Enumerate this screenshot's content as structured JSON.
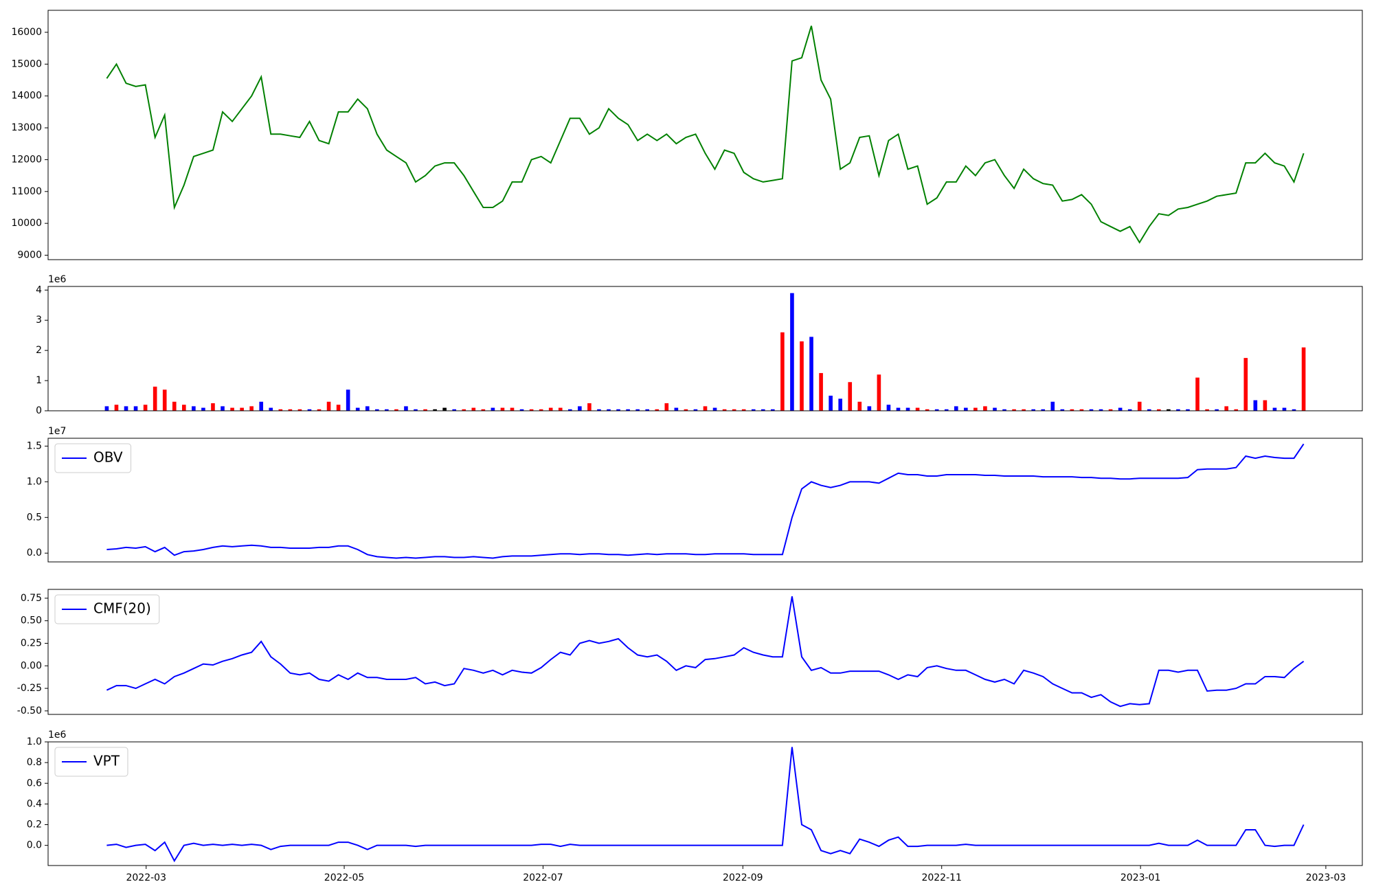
{
  "chart_data": [
    {
      "type": "line",
      "color": "green",
      "values": [
        14550,
        15000,
        14400,
        14300,
        14350,
        12700,
        13400,
        10500,
        11200,
        12100,
        12200,
        12300,
        13500,
        13200,
        13600,
        14000,
        14600,
        12800,
        12800,
        12750,
        12700,
        13200,
        12600,
        12500,
        13500,
        13500,
        13900,
        13600,
        12800,
        12300,
        12100,
        11900,
        11300,
        11500,
        11800,
        11900,
        11900,
        11500,
        11000,
        10500,
        10500,
        10700,
        11300,
        11300,
        12000,
        12100,
        11900,
        12600,
        13300,
        13300,
        12800,
        13000,
        13600,
        13300,
        13100,
        12600,
        12800,
        12600,
        12800,
        12500,
        12700,
        12800,
        12200,
        11700,
        12300,
        12200,
        11600,
        11400,
        11300,
        11350,
        11400,
        15100,
        15200,
        16200,
        14500,
        13900,
        11700,
        11900,
        12700,
        12750,
        11500,
        12600,
        12800,
        11700,
        11800,
        10600,
        10800,
        11300,
        11300,
        11800,
        11500,
        11900,
        12000,
        11500,
        11100,
        11700,
        11400,
        11250,
        11200,
        10700,
        10750,
        10900,
        10600,
        10050,
        9900,
        9750,
        9900,
        9400,
        9900,
        10300,
        10250,
        10450,
        10500,
        10600,
        10700,
        10850,
        10900,
        10950,
        11900,
        11900,
        12200,
        11900,
        11800,
        11300,
        12200
      ],
      "xlim": [
        -6.08,
        130.08
      ],
      "ylim": [
        8860,
        16690
      ],
      "yticks": [
        9000,
        10000,
        11000,
        12000,
        13000,
        14000,
        15000,
        16000
      ]
    },
    {
      "type": "bar",
      "offset_label": "1e6",
      "values": [
        0.15,
        0.2,
        0.15,
        0.15,
        0.2,
        0.8,
        0.7,
        0.3,
        0.2,
        0.15,
        0.1,
        0.25,
        0.15,
        0.1,
        0.1,
        0.15,
        0.3,
        0.1,
        0.05,
        0.05,
        0.05,
        0.05,
        0.05,
        0.3,
        0.2,
        0.7,
        0.1,
        0.15,
        0.05,
        0.05,
        0.05,
        0.15,
        0.05,
        0.05,
        0.05,
        0.1,
        0.05,
        0.05,
        0.1,
        0.05,
        0.1,
        0.1,
        0.1,
        0.05,
        0.05,
        0.05,
        0.1,
        0.1,
        0.05,
        0.15,
        0.25,
        0.05,
        0.05,
        0.05,
        0.05,
        0.05,
        0.05,
        0.05,
        0.25,
        0.1,
        0.05,
        0.05,
        0.15,
        0.1,
        0.05,
        0.05,
        0.05,
        0.05,
        0.05,
        0.05,
        2.6,
        3.9,
        2.3,
        2.45,
        1.25,
        0.5,
        0.4,
        0.95,
        0.3,
        0.15,
        1.2,
        0.2,
        0.1,
        0.1,
        0.1,
        0.05,
        0.05,
        0.05,
        0.15,
        0.1,
        0.1,
        0.15,
        0.1,
        0.05,
        0.05,
        0.05,
        0.05,
        0.05,
        0.3,
        0.05,
        0.05,
        0.05,
        0.05,
        0.05,
        0.05,
        0.1,
        0.05,
        0.3,
        0.05,
        0.05,
        0.05,
        0.05,
        0.05,
        1.1,
        0.05,
        0.05,
        0.15,
        0.05,
        1.75,
        0.35,
        0.35,
        0.1,
        0.1,
        0.05,
        2.1
      ],
      "colors": [
        "blue",
        "red",
        "blue",
        "blue",
        "red",
        "red",
        "red",
        "red",
        "red",
        "blue",
        "blue",
        "red",
        "blue",
        "red",
        "red",
        "red",
        "blue",
        "blue",
        "red",
        "red",
        "red",
        "blue",
        "red",
        "red",
        "red",
        "blue",
        "blue",
        "blue",
        "blue",
        "blue",
        "red",
        "blue",
        "blue",
        "red",
        "black",
        "black",
        "blue",
        "red",
        "red",
        "red",
        "blue",
        "red",
        "red",
        "blue",
        "red",
        "red",
        "red",
        "red",
        "blue",
        "blue",
        "red",
        "blue",
        "blue",
        "blue",
        "blue",
        "blue",
        "blue",
        "red",
        "red",
        "blue",
        "red",
        "blue",
        "red",
        "blue",
        "red",
        "red",
        "red",
        "blue",
        "blue",
        "blue",
        "red",
        "blue",
        "red",
        "blue",
        "red",
        "blue",
        "blue",
        "red",
        "red",
        "blue",
        "red",
        "blue",
        "blue",
        "blue",
        "red",
        "red",
        "blue",
        "blue",
        "blue",
        "blue",
        "red",
        "red",
        "blue",
        "blue",
        "red",
        "red",
        "blue",
        "blue",
        "blue",
        "blue",
        "red",
        "red",
        "blue",
        "blue",
        "red",
        "blue",
        "blue",
        "red",
        "blue",
        "red",
        "black",
        "blue",
        "blue",
        "red",
        "red",
        "blue",
        "red",
        "red",
        "red",
        "blue",
        "red",
        "blue",
        "blue",
        "blue",
        "red"
      ],
      "xlim": [
        -6.08,
        130.08
      ],
      "ylim": [
        0,
        4.12
      ],
      "yticks": [
        0,
        1,
        2,
        3,
        4
      ]
    },
    {
      "type": "line",
      "offset_label": "1e7",
      "series": [
        {
          "name": "OBV",
          "color": "blue",
          "values": [
            0.05,
            0.06,
            0.08,
            0.07,
            0.09,
            0.02,
            0.08,
            -0.03,
            0.02,
            0.03,
            0.05,
            0.08,
            0.1,
            0.09,
            0.1,
            0.11,
            0.1,
            0.08,
            0.08,
            0.07,
            0.07,
            0.07,
            0.08,
            0.08,
            0.1,
            0.1,
            0.05,
            -0.02,
            -0.05,
            -0.06,
            -0.07,
            -0.06,
            -0.07,
            -0.06,
            -0.05,
            -0.05,
            -0.06,
            -0.06,
            -0.05,
            -0.06,
            -0.07,
            -0.05,
            -0.04,
            -0.04,
            -0.04,
            -0.03,
            -0.02,
            -0.01,
            -0.01,
            -0.02,
            -0.01,
            -0.01,
            -0.02,
            -0.02,
            -0.03,
            -0.02,
            -0.01,
            -0.02,
            -0.01,
            -0.01,
            -0.01,
            -0.02,
            -0.02,
            -0.01,
            -0.01,
            -0.01,
            -0.01,
            -0.02,
            -0.02,
            -0.02,
            -0.02,
            0.5,
            0.9,
            1.0,
            0.95,
            0.92,
            0.95,
            1.0,
            1.0,
            1.0,
            0.98,
            1.05,
            1.12,
            1.1,
            1.1,
            1.08,
            1.08,
            1.1,
            1.1,
            1.1,
            1.1,
            1.09,
            1.09,
            1.08,
            1.08,
            1.08,
            1.08,
            1.07,
            1.07,
            1.07,
            1.07,
            1.06,
            1.06,
            1.05,
            1.05,
            1.04,
            1.04,
            1.05,
            1.05,
            1.05,
            1.05,
            1.05,
            1.06,
            1.17,
            1.18,
            1.18,
            1.18,
            1.2,
            1.36,
            1.33,
            1.36,
            1.34,
            1.33,
            1.33,
            1.53
          ]
        }
      ],
      "xlim": [
        -6.08,
        130.08
      ],
      "ylim": [
        -0.123,
        1.61
      ],
      "yticks": [
        {
          "value": 0,
          "label": "0.0"
        },
        {
          "value": 0.5,
          "label": "0.5"
        },
        {
          "value": 1,
          "label": "1.0"
        },
        {
          "value": 1.5,
          "label": "1.5"
        }
      ]
    },
    {
      "type": "line",
      "series": [
        {
          "name": "CMF(20)",
          "color": "blue",
          "values": [
            -0.27,
            -0.22,
            -0.22,
            -0.25,
            -0.2,
            -0.15,
            -0.2,
            -0.12,
            -0.08,
            -0.03,
            0.02,
            0.01,
            0.05,
            0.08,
            0.12,
            0.15,
            0.27,
            0.1,
            0.02,
            -0.08,
            -0.1,
            -0.08,
            -0.15,
            -0.17,
            -0.1,
            -0.15,
            -0.08,
            -0.13,
            -0.13,
            -0.15,
            -0.15,
            -0.15,
            -0.13,
            -0.2,
            -0.18,
            -0.22,
            -0.2,
            -0.03,
            -0.05,
            -0.08,
            -0.05,
            -0.1,
            -0.05,
            -0.07,
            -0.08,
            -0.02,
            0.07,
            0.15,
            0.12,
            0.25,
            0.28,
            0.25,
            0.27,
            0.3,
            0.2,
            0.12,
            0.1,
            0.12,
            0.05,
            -0.05,
            0,
            -0.02,
            0.07,
            0.08,
            0.1,
            0.12,
            0.2,
            0.15,
            0.12,
            0.1,
            0.1,
            0.77,
            0.1,
            -0.05,
            -0.02,
            -0.08,
            -0.08,
            -0.06,
            -0.06,
            -0.06,
            -0.06,
            -0.1,
            -0.15,
            -0.1,
            -0.12,
            -0.02,
            0,
            -0.03,
            -0.05,
            -0.05,
            -0.1,
            -0.15,
            -0.18,
            -0.15,
            -0.2,
            -0.05,
            -0.08,
            -0.12,
            -0.2,
            -0.25,
            -0.3,
            -0.3,
            -0.35,
            -0.32,
            -0.4,
            -0.45,
            -0.42,
            -0.43,
            -0.42,
            -0.05,
            -0.05,
            -0.07,
            -0.05,
            -0.05,
            -0.28,
            -0.27,
            -0.27,
            -0.25,
            -0.2,
            -0.2,
            -0.12,
            -0.12,
            -0.13,
            -0.03,
            0.05
          ]
        }
      ],
      "xlim": [
        -6.08,
        130.08
      ],
      "ylim": [
        -0.539,
        0.848
      ],
      "yticks": [
        {
          "value": -0.5,
          "label": "-0.50"
        },
        {
          "value": -0.25,
          "label": "-0.25"
        },
        {
          "value": 0,
          "label": "0.00"
        },
        0.25,
        {
          "value": 0.5,
          "label": "0.50"
        },
        0.75
      ]
    },
    {
      "type": "line",
      "offset_label": "1e6",
      "series": [
        {
          "name": "VPT",
          "color": "blue",
          "values": [
            0,
            0.01,
            -0.02,
            0,
            0.01,
            -0.05,
            0.03,
            -0.15,
            0,
            0.02,
            0,
            0.01,
            0,
            0.01,
            0,
            0.01,
            0,
            -0.04,
            -0.01,
            0,
            0,
            0,
            0,
            0,
            0.03,
            0.03,
            0,
            -0.04,
            0,
            0,
            0,
            0,
            -0.01,
            0,
            0,
            0,
            0,
            0,
            0,
            0,
            0,
            0,
            0,
            0,
            0,
            0.01,
            0.01,
            -0.01,
            0.01,
            0,
            0,
            0,
            0,
            0,
            0,
            0,
            0,
            0,
            0,
            0,
            0,
            0,
            0,
            0,
            0,
            0,
            0,
            0,
            0,
            0,
            0,
            0.95,
            0.2,
            0.15,
            -0.05,
            -0.08,
            -0.05,
            -0.08,
            0.06,
            0.03,
            -0.01,
            0.05,
            0.08,
            -0.01,
            -0.01,
            0,
            0,
            0,
            0,
            0.01,
            0,
            0,
            0,
            0,
            0,
            0,
            0,
            0,
            0,
            0,
            0,
            0,
            0,
            0,
            0,
            0,
            0,
            0,
            0,
            0.02,
            0,
            0,
            0,
            0.05,
            0,
            0,
            0,
            0,
            0.15,
            0.15,
            0,
            -0.01,
            0,
            0,
            0.2
          ]
        }
      ],
      "xlim": [
        -6.08,
        130.08
      ],
      "ylim": [
        -0.195,
        1.0
      ],
      "yticks": [
        {
          "value": 0,
          "label": "0.0"
        },
        0.2,
        0.4,
        0.6,
        0.8,
        {
          "value": 1,
          "label": "1.0"
        }
      ],
      "xticks": [
        {
          "value": 4.08,
          "label": "2022-03"
        },
        {
          "value": 24.6,
          "label": "2022-05"
        },
        {
          "value": 45.2,
          "label": "2022-07"
        },
        {
          "value": 65.9,
          "label": "2022-09"
        },
        {
          "value": 86.5,
          "label": "2022-11"
        },
        {
          "value": 107.1,
          "label": "2023-01"
        },
        {
          "value": 126.3,
          "label": "2023-03"
        }
      ]
    }
  ]
}
